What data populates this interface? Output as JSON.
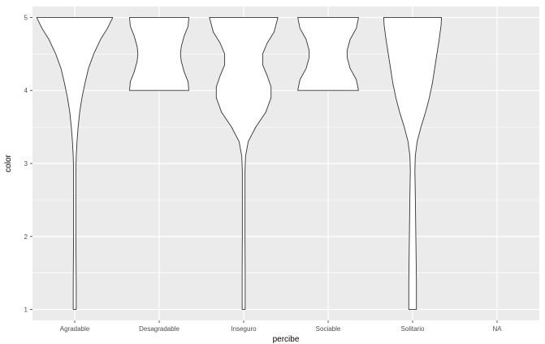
{
  "chart_data": {
    "type": "violin",
    "title": "",
    "xlabel": "percibe",
    "ylabel": "color",
    "categories": [
      "Agradable",
      "Desagradable",
      "Inseguro",
      "Sociable",
      "Solitario",
      "NA"
    ],
    "y_ticks": [
      "1",
      "2",
      "3",
      "4",
      "5"
    ],
    "ylim": [
      0.85,
      5.15
    ],
    "grid": true,
    "panel_color": "#ebebeb",
    "grid_color": "#ffffff",
    "violin_fill": "#ffffff",
    "violin_stroke": "#333333",
    "violins": [
      {
        "category": "Agradable",
        "ymin": 1,
        "ymax": 5,
        "profile": [
          [
            1.0,
            0.04
          ],
          [
            1.3,
            0.04
          ],
          [
            1.7,
            0.035
          ],
          [
            2.0,
            0.03
          ],
          [
            2.3,
            0.03
          ],
          [
            2.6,
            0.03
          ],
          [
            2.9,
            0.03
          ],
          [
            3.1,
            0.04
          ],
          [
            3.3,
            0.06
          ],
          [
            3.5,
            0.09
          ],
          [
            3.7,
            0.13
          ],
          [
            3.9,
            0.19
          ],
          [
            4.1,
            0.27
          ],
          [
            4.3,
            0.36
          ],
          [
            4.5,
            0.5
          ],
          [
            4.7,
            0.68
          ],
          [
            4.85,
            0.86
          ],
          [
            5.0,
            1.0
          ]
        ]
      },
      {
        "category": "Desagradable",
        "ymin": 4,
        "ymax": 5,
        "profile": [
          [
            4.0,
            0.78
          ],
          [
            4.12,
            0.76
          ],
          [
            4.25,
            0.66
          ],
          [
            4.4,
            0.58
          ],
          [
            4.5,
            0.56
          ],
          [
            4.6,
            0.58
          ],
          [
            4.75,
            0.66
          ],
          [
            4.88,
            0.76
          ],
          [
            5.0,
            0.78
          ]
        ]
      },
      {
        "category": "Inseguro",
        "ymin": 1,
        "ymax": 5,
        "profile": [
          [
            1.0,
            0.04
          ],
          [
            1.5,
            0.04
          ],
          [
            2.0,
            0.035
          ],
          [
            2.5,
            0.035
          ],
          [
            2.9,
            0.035
          ],
          [
            3.1,
            0.05
          ],
          [
            3.3,
            0.12
          ],
          [
            3.5,
            0.32
          ],
          [
            3.7,
            0.58
          ],
          [
            3.9,
            0.72
          ],
          [
            4.05,
            0.72
          ],
          [
            4.2,
            0.62
          ],
          [
            4.35,
            0.5
          ],
          [
            4.5,
            0.5
          ],
          [
            4.65,
            0.62
          ],
          [
            4.8,
            0.8
          ],
          [
            5.0,
            0.9
          ]
        ]
      },
      {
        "category": "Sociable",
        "ymin": 4,
        "ymax": 5,
        "profile": [
          [
            4.0,
            0.8
          ],
          [
            4.15,
            0.74
          ],
          [
            4.3,
            0.58
          ],
          [
            4.45,
            0.5
          ],
          [
            4.55,
            0.5
          ],
          [
            4.7,
            0.58
          ],
          [
            4.85,
            0.74
          ],
          [
            5.0,
            0.8
          ]
        ]
      },
      {
        "category": "Solitario",
        "ymin": 1,
        "ymax": 5,
        "profile": [
          [
            1.0,
            0.1
          ],
          [
            1.4,
            0.1
          ],
          [
            1.8,
            0.09
          ],
          [
            2.2,
            0.08
          ],
          [
            2.6,
            0.07
          ],
          [
            2.9,
            0.06
          ],
          [
            3.1,
            0.07
          ],
          [
            3.3,
            0.12
          ],
          [
            3.5,
            0.22
          ],
          [
            3.7,
            0.34
          ],
          [
            3.9,
            0.44
          ],
          [
            4.1,
            0.52
          ],
          [
            4.3,
            0.58
          ],
          [
            4.5,
            0.64
          ],
          [
            4.7,
            0.7
          ],
          [
            4.9,
            0.75
          ],
          [
            5.0,
            0.76
          ]
        ]
      }
    ]
  }
}
